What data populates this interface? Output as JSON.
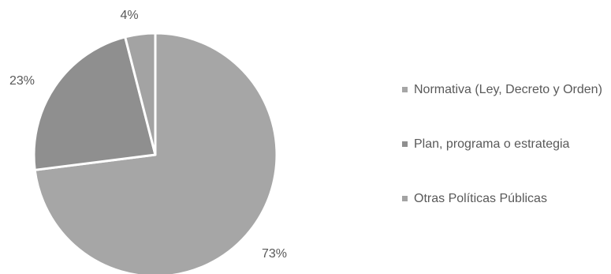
{
  "chart_data": {
    "type": "pie",
    "title": "",
    "slices": [
      {
        "label": "Normativa (Ley, Decreto y Orden)",
        "value": 73,
        "display": "73%",
        "color": "#a6a6a6"
      },
      {
        "label": "Plan, programa o estrategia",
        "value": 23,
        "display": "23%",
        "color": "#8f8f8f"
      },
      {
        "label": "Otras Políticas Públicas",
        "value": 4,
        "display": "4%",
        "color": "#a3a3a3"
      }
    ],
    "legend_position": "right",
    "start_angle_deg": 0,
    "direction": "clockwise",
    "slice_separator_color": "#ffffff"
  }
}
